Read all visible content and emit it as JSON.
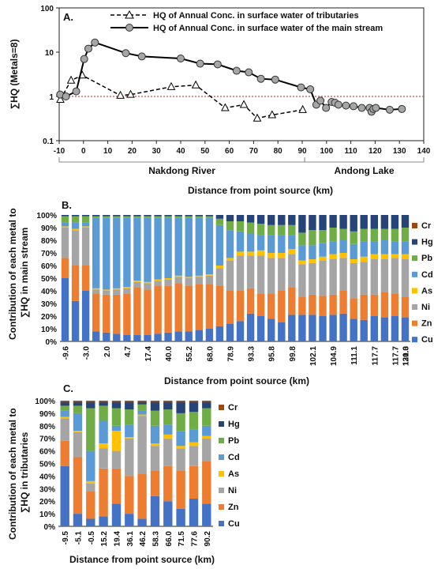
{
  "chart_data": [
    {
      "panel": "A.",
      "type": "line",
      "ylabel": "∑HQ (Metals=8)",
      "xlabel": "Distance from point source (km)",
      "yscale": "log",
      "ylim": [
        0.1,
        100
      ],
      "xlim": [
        -10,
        140
      ],
      "xticks": [
        -10,
        0,
        10,
        20,
        30,
        40,
        50,
        60,
        70,
        80,
        90,
        100,
        110,
        120,
        130,
        140
      ],
      "yticks": [
        0.1,
        1,
        10,
        100
      ],
      "reference_line": 1,
      "regions": [
        {
          "label": "Nakdong River",
          "from": -10,
          "to": 91
        },
        {
          "label": "Andong Lake",
          "from": 91,
          "to": 140
        }
      ],
      "series": [
        {
          "name": "HQ of Annual Conc. in surface water of tributaries",
          "style": "dashed-triangle",
          "x": [
            -9.5,
            -5.1,
            -0.5,
            15.2,
            19.4,
            36.1,
            46.2,
            58.3,
            66.0,
            71.5,
            77.6,
            90.2
          ],
          "y": [
            0.85,
            2.3,
            3.0,
            1.05,
            1.1,
            1.65,
            1.8,
            0.55,
            0.65,
            0.32,
            0.38,
            0.5
          ]
        },
        {
          "name": "HQ of Annual Conc. in surface water of the main stream",
          "style": "solid-circle",
          "x": [
            -9.6,
            -7.2,
            -3.0,
            0.3,
            2.0,
            4.7,
            17.4,
            24.0,
            40.0,
            48.0,
            55.2,
            63.0,
            68.0,
            73.0,
            78.9,
            89.5,
            93.3,
            95.8,
            97.5,
            99.8,
            102.1,
            103.5,
            104.9,
            108.0,
            111.1,
            114.5,
            117.7,
            118.5,
            119.3,
            120.3,
            126.0,
            131.0
          ],
          "y": [
            1.1,
            1.0,
            1.3,
            7.0,
            12.0,
            16.5,
            9.5,
            8.0,
            7.2,
            5.5,
            5.3,
            3.8,
            3.5,
            2.5,
            2.4,
            1.6,
            1.45,
            0.65,
            0.8,
            0.55,
            0.75,
            0.72,
            0.65,
            0.62,
            0.6,
            0.55,
            0.55,
            0.45,
            0.52,
            0.55,
            0.5,
            0.52
          ]
        }
      ]
    },
    {
      "panel": "B.",
      "type": "bar",
      "stacked": true,
      "ylabel": "Contribution of each metal to ∑HQ in main stream",
      "xlabel": "Distance from point source (km)",
      "ylim": [
        0,
        100
      ],
      "yticks": [
        "0%",
        "10%",
        "20%",
        "30%",
        "40%",
        "50%",
        "60%",
        "70%",
        "80%",
        "90%",
        "100%"
      ],
      "x_labels_shown": [
        "-9.6",
        "-3.0",
        "2.0",
        "4.7",
        "17.4",
        "40.0",
        "55.2",
        "68.0",
        "78.9",
        "93.3",
        "95.8",
        "99.8",
        "102.1",
        "104.9",
        "111.1",
        "117.7",
        "117.7",
        "120.3",
        "131.0"
      ],
      "metals": [
        "Cu",
        "Zn",
        "Ni",
        "As",
        "Cd",
        "Pb",
        "Hg",
        "Cr"
      ],
      "legend_order": [
        "Cr",
        "Hg",
        "Pb",
        "Cd",
        "As",
        "Ni",
        "Zn",
        "Cu"
      ],
      "colors": {
        "Cu": "#4472c4",
        "Zn": "#ed7d31",
        "Ni": "#a5a5a5",
        "As": "#ffc000",
        "Cd": "#5b9bd5",
        "Pb": "#70ad47",
        "Hg": "#264478",
        "Cr": "#9e480e"
      },
      "bars": [
        [
          50,
          16,
          24,
          1,
          3,
          5,
          1,
          0
        ],
        [
          32,
          28,
          28,
          1,
          5,
          5,
          1,
          0
        ],
        [
          40,
          20,
          30,
          1,
          3,
          5,
          1,
          0
        ],
        [
          8,
          30,
          3,
          1,
          56,
          1,
          1,
          0
        ],
        [
          7,
          30,
          3,
          1,
          57,
          1,
          1,
          0
        ],
        [
          6,
          31,
          4,
          1,
          56,
          1,
          1,
          0
        ],
        [
          5,
          33,
          4,
          1,
          55,
          1,
          1,
          0
        ],
        [
          5,
          38,
          4,
          1,
          50,
          1,
          1,
          0
        ],
        [
          5,
          36,
          5,
          1,
          51,
          1,
          1,
          0
        ],
        [
          6,
          38,
          4,
          1,
          49,
          1,
          1,
          0
        ],
        [
          7,
          37,
          5,
          1,
          48,
          1,
          1,
          0
        ],
        [
          8,
          38,
          5,
          1,
          46,
          1,
          1,
          0
        ],
        [
          8,
          36,
          6,
          1,
          47,
          1,
          1,
          0
        ],
        [
          9,
          36,
          6,
          1,
          46,
          1,
          1,
          0
        ],
        [
          10,
          35,
          7,
          1,
          45,
          1,
          1,
          0
        ],
        [
          12,
          32,
          14,
          2,
          32,
          5,
          3,
          0
        ],
        [
          14,
          26,
          24,
          2,
          22,
          7,
          5,
          0
        ],
        [
          16,
          24,
          28,
          3,
          16,
          8,
          5,
          0
        ],
        [
          22,
          20,
          26,
          3,
          14,
          9,
          6,
          0
        ],
        [
          20,
          18,
          30,
          4,
          12,
          9,
          7,
          0
        ],
        [
          18,
          20,
          28,
          4,
          14,
          8,
          8,
          0
        ],
        [
          15,
          25,
          26,
          4,
          14,
          8,
          8,
          0
        ],
        [
          21,
          22,
          26,
          4,
          11,
          8,
          8,
          0
        ],
        [
          21,
          14,
          26,
          3,
          12,
          10,
          14,
          0
        ],
        [
          21,
          16,
          25,
          3,
          11,
          12,
          12,
          0
        ],
        [
          20,
          16,
          28,
          3,
          11,
          10,
          12,
          0
        ],
        [
          21,
          16,
          28,
          4,
          10,
          11,
          10,
          0
        ],
        [
          22,
          18,
          26,
          4,
          10,
          9,
          11,
          0
        ],
        [
          18,
          16,
          28,
          3,
          12,
          10,
          13,
          0
        ],
        [
          17,
          20,
          26,
          4,
          12,
          10,
          11,
          0
        ],
        [
          20,
          17,
          28,
          4,
          10,
          10,
          11,
          0
        ],
        [
          19,
          20,
          26,
          4,
          11,
          9,
          11,
          0
        ],
        [
          20,
          18,
          28,
          3,
          10,
          10,
          11,
          0
        ],
        [
          19,
          16,
          30,
          4,
          10,
          11,
          10,
          0
        ]
      ]
    },
    {
      "panel": "C.",
      "type": "bar",
      "stacked": true,
      "ylabel": "Contribution of each metal to ∑HQ in tributaries",
      "xlabel": "Distance from point source (km)",
      "ylim": [
        0,
        100
      ],
      "yticks": [
        "0%",
        "10%",
        "20%",
        "30%",
        "40%",
        "50%",
        "60%",
        "70%",
        "80%",
        "90%",
        "100%"
      ],
      "categories": [
        "-9.5",
        "-5.1",
        "-0.5",
        "15.2",
        "19.4",
        "36.1",
        "46.2",
        "58.3",
        "66.0",
        "71.5",
        "77.6",
        "90.2"
      ],
      "metals": [
        "Cu",
        "Zn",
        "Ni",
        "As",
        "Cd",
        "Pb",
        "Hg",
        "Cr"
      ],
      "legend_order": [
        "Cr",
        "Hg",
        "Pb",
        "Cd",
        "As",
        "Ni",
        "Zn",
        "Cu"
      ],
      "colors": {
        "Cu": "#4472c4",
        "Zn": "#ed7d31",
        "Ni": "#a5a5a5",
        "As": "#ffc000",
        "Cd": "#5b9bd5",
        "Pb": "#70ad47",
        "Hg": "#264478",
        "Cr": "#9e480e"
      },
      "bars": [
        [
          48,
          20,
          18,
          1,
          5,
          4,
          3,
          1
        ],
        [
          10,
          45,
          20,
          1,
          14,
          6,
          3,
          1
        ],
        [
          6,
          22,
          6,
          2,
          24,
          34,
          5,
          1
        ],
        [
          8,
          38,
          16,
          4,
          18,
          12,
          3,
          1
        ],
        [
          18,
          28,
          14,
          16,
          4,
          14,
          5,
          1
        ],
        [
          10,
          30,
          30,
          1,
          10,
          12,
          6,
          1
        ],
        [
          6,
          36,
          46,
          1,
          3,
          5,
          2,
          1
        ],
        [
          24,
          20,
          20,
          2,
          14,
          12,
          7,
          1
        ],
        [
          20,
          28,
          22,
          3,
          8,
          12,
          6,
          1
        ],
        [
          14,
          30,
          18,
          2,
          12,
          14,
          9,
          1
        ],
        [
          22,
          26,
          16,
          3,
          10,
          14,
          8,
          1
        ],
        [
          18,
          34,
          18,
          2,
          8,
          14,
          5,
          1
        ]
      ]
    }
  ]
}
